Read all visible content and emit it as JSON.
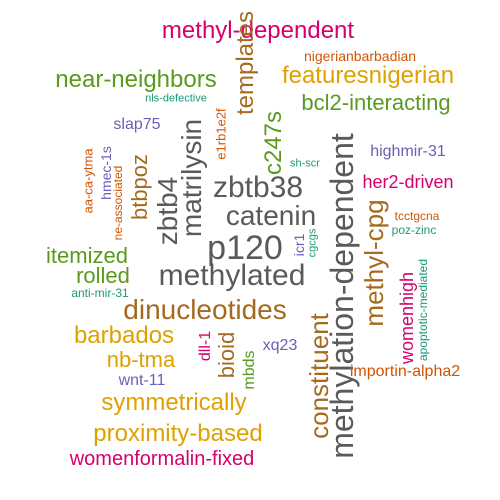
{
  "colors": {
    "magenta": "#d6006c",
    "orange": "#d45400",
    "green": "#5a9a1e",
    "teal": "#1a9a7a",
    "purple": "#6b5fb5",
    "gold": "#e0a000",
    "brown": "#a46a1e",
    "gray": "#5a5a5a"
  },
  "words": [
    {
      "text": "methyl-dependent",
      "color": "magenta"
    },
    {
      "text": "nigerianbarbadian",
      "color": "orange"
    },
    {
      "text": "near-neighbors",
      "color": "green"
    },
    {
      "text": "templates",
      "color": "brown"
    },
    {
      "text": "featuresnigerian",
      "color": "gold"
    },
    {
      "text": "nls-defective",
      "color": "teal"
    },
    {
      "text": "bcl2-interacting",
      "color": "green"
    },
    {
      "text": "e1rb1e2f",
      "color": "orange"
    },
    {
      "text": "slap75",
      "color": "purple"
    },
    {
      "text": "matrilysin",
      "color": "gray"
    },
    {
      "text": "c247s",
      "color": "green"
    },
    {
      "text": "aa-ca-ytma",
      "color": "orange"
    },
    {
      "text": "hmec-1s",
      "color": "purple"
    },
    {
      "text": "btbpoz",
      "color": "brown"
    },
    {
      "text": "zbtb38",
      "color": "gray"
    },
    {
      "text": "highmir-31",
      "color": "purple"
    },
    {
      "text": "sh-scr",
      "color": "teal"
    },
    {
      "text": "her2-driven",
      "color": "magenta"
    },
    {
      "text": "ne-associated",
      "color": "orange"
    },
    {
      "text": "zbtb4",
      "color": "gray"
    },
    {
      "text": "catenin",
      "color": "gray"
    },
    {
      "text": "methylation-dependent",
      "color": "gray"
    },
    {
      "text": "tcctgcna",
      "color": "orange"
    },
    {
      "text": "poz-zinc",
      "color": "teal"
    },
    {
      "text": "methyl-cpg",
      "color": "brown"
    },
    {
      "text": "itemized",
      "color": "green"
    },
    {
      "text": "icr1",
      "color": "purple"
    },
    {
      "text": "cgcgs",
      "color": "teal"
    },
    {
      "text": "p120",
      "color": "gray"
    },
    {
      "text": "rolled",
      "color": "green"
    },
    {
      "text": "methylated",
      "color": "gray"
    },
    {
      "text": "womenhigh",
      "color": "magenta"
    },
    {
      "text": "anti-mir-31",
      "color": "teal"
    },
    {
      "text": "apoptotic-mediated",
      "color": "teal"
    },
    {
      "text": "dinucleotides",
      "color": "brown"
    },
    {
      "text": "constituent",
      "color": "brown"
    },
    {
      "text": "barbados",
      "color": "gold"
    },
    {
      "text": "dll-1",
      "color": "magenta"
    },
    {
      "text": "bioid",
      "color": "brown"
    },
    {
      "text": "xq23",
      "color": "purple"
    },
    {
      "text": "nb-tma",
      "color": "gold"
    },
    {
      "text": "mbds",
      "color": "green"
    },
    {
      "text": "importin-alpha2",
      "color": "orange"
    },
    {
      "text": "wnt-11",
      "color": "purple"
    },
    {
      "text": "symmetrically",
      "color": "gold"
    },
    {
      "text": "proximity-based",
      "color": "gold"
    },
    {
      "text": "womenformalin-fixed",
      "color": "magenta"
    }
  ]
}
